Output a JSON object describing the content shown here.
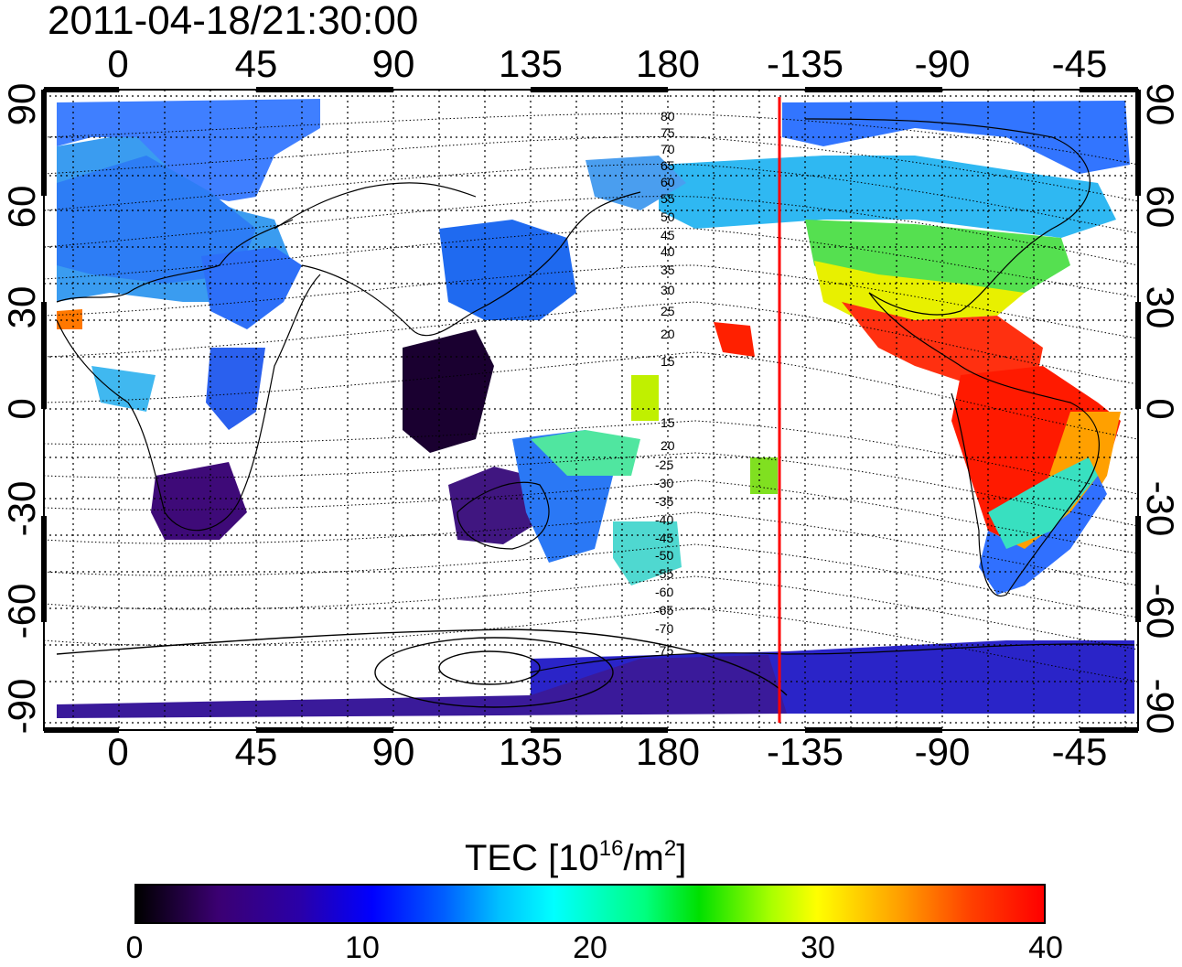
{
  "title": "2011-04-18/21:30:00",
  "x_tick_labels": [
    "0",
    "45",
    "90",
    "135",
    "180",
    "-135",
    "-90",
    "-45"
  ],
  "y_tick_labels": [
    "90",
    "60",
    "30",
    "0",
    "-30",
    "-60",
    "-90"
  ],
  "contour_labels": [
    "80",
    "75",
    "70",
    "65",
    "60",
    "55",
    "50",
    "45",
    "40",
    "35",
    "30",
    "25",
    "20",
    "15",
    "15",
    "20",
    "-25",
    "-30",
    "-35",
    "-40",
    "-45",
    "-50",
    "-55",
    "-60",
    "-65",
    "-70",
    "-75"
  ],
  "colorbar": {
    "title_prefix": "TEC  [10",
    "title_exp1": "16",
    "title_mid": "/m",
    "title_exp2": "2",
    "title_suffix": "]",
    "tick_labels": [
      "0",
      "10",
      "20",
      "30",
      "40"
    ]
  },
  "colors": {
    "terminator_line": "#ff0000",
    "grid": "#000000"
  }
}
